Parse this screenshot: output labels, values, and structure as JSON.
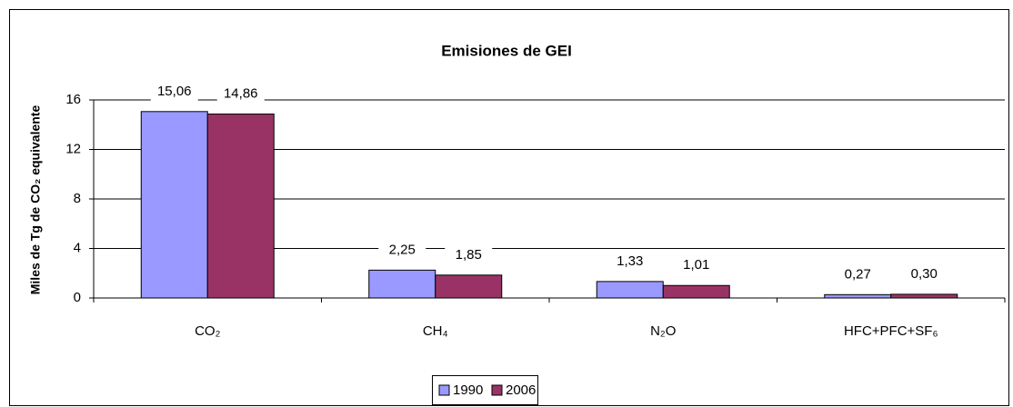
{
  "chart_data": {
    "type": "bar",
    "title": "Emisiones de GEI",
    "y_label": "Miles de Tg de CO₂ equivalente",
    "categories": [
      "CO₂",
      "CH₄",
      "N₂O",
      "HFC+PFC+SF₆"
    ],
    "series": [
      {
        "name": "1990",
        "color": "#9999ff",
        "values": [
          15.06,
          2.25,
          1.33,
          0.27
        ],
        "value_labels": [
          "15,06",
          "2,25",
          "1,33",
          "0,27"
        ]
      },
      {
        "name": "2006",
        "color": "#993366",
        "values": [
          14.86,
          1.85,
          1.01,
          0.3
        ],
        "value_labels": [
          "14,86",
          "1,85",
          "1,01",
          "0,30"
        ]
      }
    ],
    "ylim": [
      0,
      16
    ],
    "yticks": [
      0,
      4,
      8,
      12,
      16
    ],
    "grid": true,
    "legend": "bottom"
  }
}
